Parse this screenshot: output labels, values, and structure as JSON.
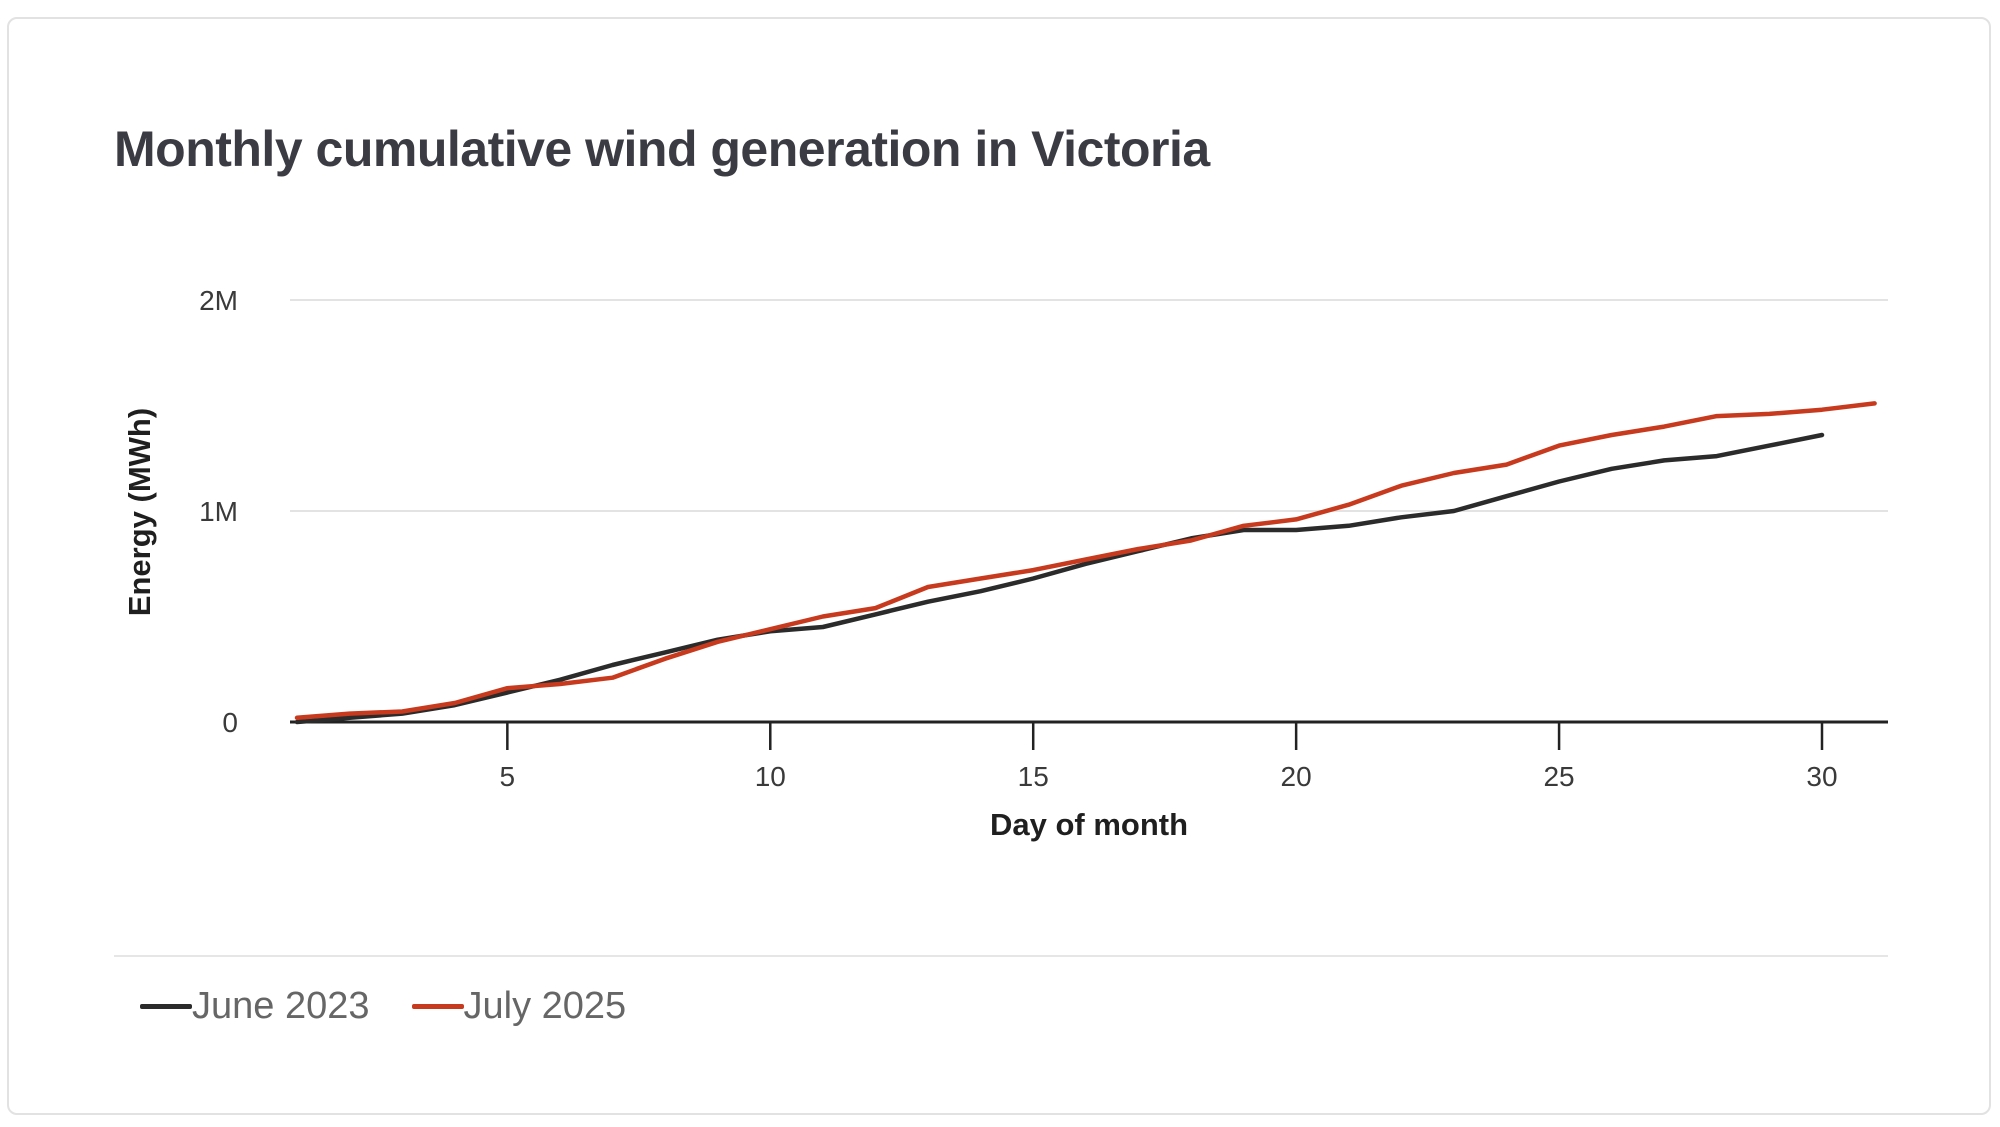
{
  "chart_data": {
    "type": "line",
    "title": "Monthly cumulative wind generation in Victoria",
    "xlabel": "Day of month",
    "ylabel": "Energy (MWh)",
    "xlim": [
      1,
      31
    ],
    "ylim": [
      0,
      2000000
    ],
    "x_ticks": [
      {
        "value": 5,
        "label": "5"
      },
      {
        "value": 10,
        "label": "10"
      },
      {
        "value": 15,
        "label": "15"
      },
      {
        "value": 20,
        "label": "20"
      },
      {
        "value": 25,
        "label": "25"
      },
      {
        "value": 30,
        "label": "30"
      }
    ],
    "y_ticks": [
      {
        "value": 0,
        "label": "0"
      },
      {
        "value": 1000000,
        "label": "1M"
      },
      {
        "value": 2000000,
        "label": "2M"
      }
    ],
    "grid": "horizontal",
    "legend_position": "bottom-left",
    "series": [
      {
        "name": "June 2023",
        "color": "#2b2b2b",
        "x": [
          1,
          2,
          3,
          4,
          5,
          6,
          7,
          8,
          9,
          10,
          11,
          12,
          13,
          14,
          15,
          16,
          17,
          18,
          19,
          20,
          21,
          22,
          23,
          24,
          25,
          26,
          27,
          28,
          29,
          30
        ],
        "values": [
          0,
          20000,
          40000,
          80000,
          140000,
          200000,
          270000,
          330000,
          390000,
          430000,
          450000,
          510000,
          570000,
          620000,
          680000,
          750000,
          810000,
          870000,
          910000,
          910000,
          930000,
          970000,
          1000000,
          1070000,
          1140000,
          1200000,
          1240000,
          1260000,
          1310000,
          1360000
        ]
      },
      {
        "name": "July 2025",
        "color": "#c83a1e",
        "x": [
          1,
          2,
          3,
          4,
          5,
          6,
          7,
          8,
          9,
          10,
          11,
          12,
          13,
          14,
          15,
          16,
          17,
          18,
          19,
          20,
          21,
          22,
          23,
          24,
          25,
          26,
          27,
          28,
          29,
          30,
          31
        ],
        "values": [
          20000,
          40000,
          50000,
          90000,
          160000,
          180000,
          210000,
          300000,
          380000,
          440000,
          500000,
          540000,
          640000,
          680000,
          720000,
          770000,
          820000,
          860000,
          930000,
          960000,
          1030000,
          1120000,
          1180000,
          1220000,
          1310000,
          1360000,
          1400000,
          1450000,
          1460000,
          1480000,
          1510000
        ]
      }
    ]
  }
}
